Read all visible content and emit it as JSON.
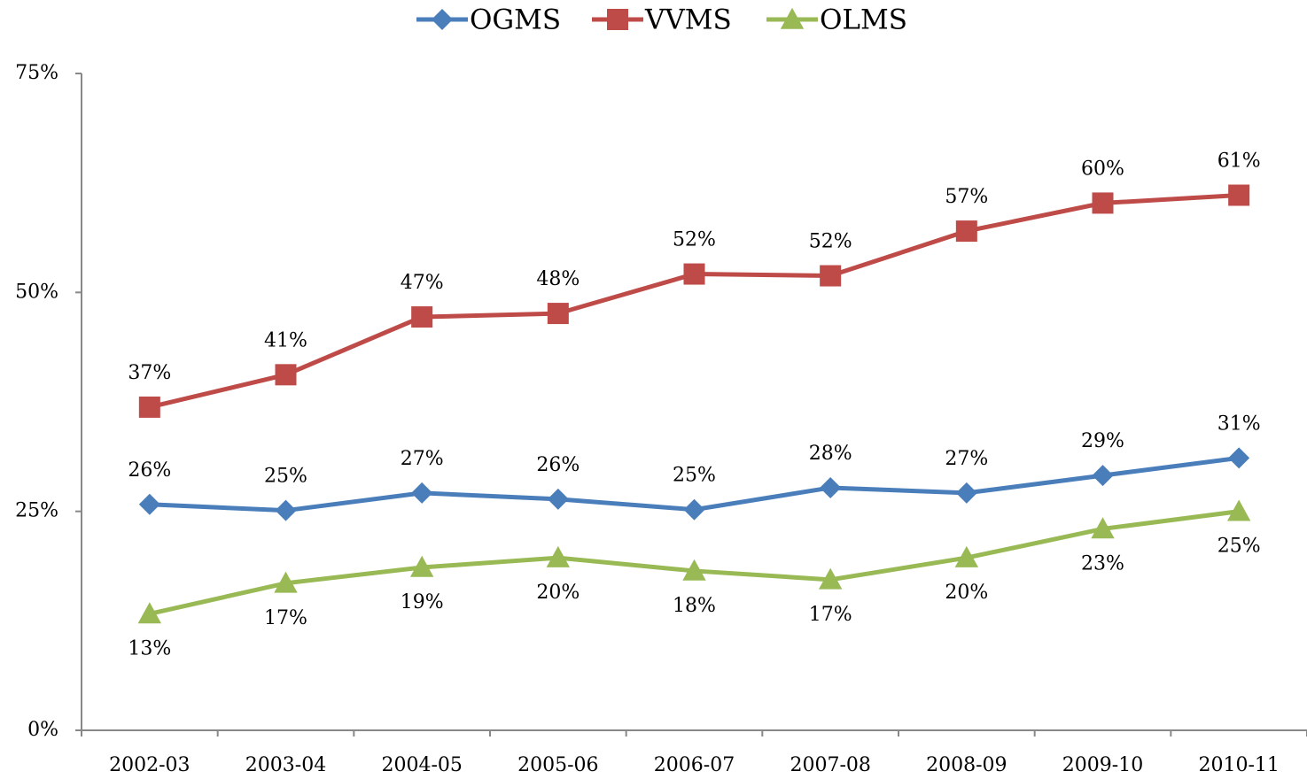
{
  "chart_data": {
    "type": "line",
    "categories": [
      "2002-03",
      "2003-04",
      "2004-05",
      "2005-06",
      "2006-07",
      "2007-08",
      "2008-09",
      "2009-10",
      "2010-11"
    ],
    "series": [
      {
        "name": "OGMS",
        "color": "#4a7ebb",
        "marker": "diamond",
        "values": [
          25.8,
          25.1,
          27.1,
          26.4,
          25.2,
          27.7,
          27.1,
          29.1,
          31.1
        ],
        "value_labels": [
          "26%",
          "25%",
          "27%",
          "26%",
          "25%",
          "28%",
          "27%",
          "29%",
          "31%"
        ]
      },
      {
        "name": "VVMS",
        "color": "#be4b48",
        "marker": "square",
        "values": [
          36.9,
          40.6,
          47.2,
          47.6,
          52.1,
          51.9,
          57.0,
          60.2,
          61.1
        ],
        "value_labels": [
          "37%",
          "41%",
          "47%",
          "48%",
          "52%",
          "52%",
          "57%",
          "60%",
          "61%"
        ]
      },
      {
        "name": "OLMS",
        "color": "#98b954",
        "marker": "triangle",
        "values": [
          13.3,
          16.8,
          18.6,
          19.7,
          18.2,
          17.2,
          19.7,
          23.0,
          25.0
        ],
        "value_labels": [
          "13%",
          "17%",
          "19%",
          "20%",
          "18%",
          "17%",
          "20%",
          "23%",
          "25%"
        ]
      }
    ],
    "ylim": [
      0,
      75
    ],
    "yticks": [
      {
        "value": 0,
        "label": "0%"
      },
      {
        "value": 25,
        "label": "25%"
      },
      {
        "value": 50,
        "label": "50%"
      },
      {
        "value": 75,
        "label": "75%"
      }
    ],
    "grid": false,
    "legend": "top"
  }
}
